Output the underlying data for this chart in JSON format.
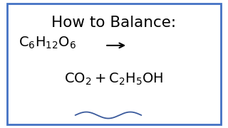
{
  "background_color": "#ffffff",
  "border_color": "#4472c4",
  "border_linewidth": 2.0,
  "title_text": "How to Balance:",
  "title_fontsize": 15.5,
  "title_color": "#000000",
  "text_color": "#000000",
  "squiggle_color": "#3a5a9c",
  "figsize": [
    3.2,
    1.8
  ],
  "dpi": 100
}
